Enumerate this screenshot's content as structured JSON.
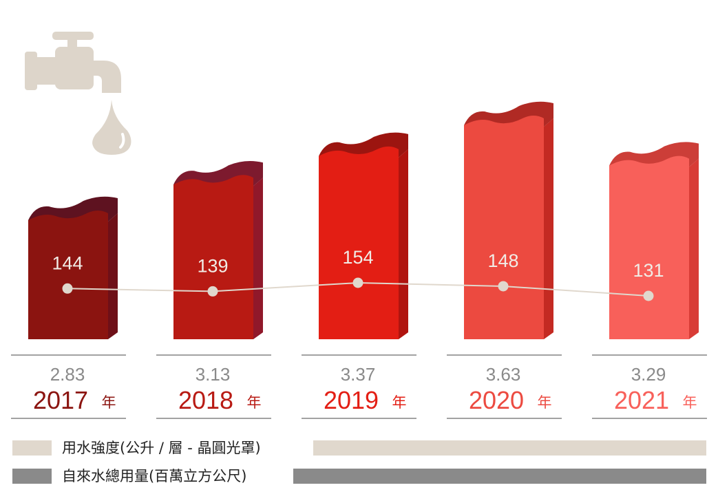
{
  "chart_data": {
    "type": "bar",
    "categories": [
      "2017",
      "2018",
      "2019",
      "2020",
      "2021"
    ],
    "year_suffix": "年",
    "series": [
      {
        "name": "自來水總用量(百萬立方公尺)",
        "values": [
          2.83,
          3.13,
          3.37,
          3.63,
          3.29
        ],
        "labels": [
          "2.83",
          "3.13",
          "3.37",
          "3.63",
          "3.29"
        ],
        "kind": "bar"
      },
      {
        "name": "用水強度(公升 / 層 - 晶圓光罩)",
        "values": [
          144,
          139,
          154,
          148,
          131
        ],
        "labels": [
          "144",
          "139",
          "154",
          "148",
          "131"
        ],
        "kind": "line"
      }
    ],
    "bar_colors": [
      "#8b1410",
      "#b81a13",
      "#e31e14",
      "#ec4a40",
      "#f8605a"
    ],
    "bar_side_colors": [
      "#6e1018",
      "#90182a",
      "#b0140f",
      "#c42a22",
      "#d83c36"
    ],
    "bar_top_colors": [
      "#5e1220",
      "#7d1a2e",
      "#9c1510",
      "#b02a24",
      "#cc3e38"
    ],
    "year_colors": [
      "#8b1410",
      "#b81a13",
      "#e31e14",
      "#ec4a40",
      "#f8605a"
    ],
    "value_text_color": "#8a8a8a",
    "line_color": "#e0d8cd",
    "legend_colors": {
      "intensity": "#e0d8cd",
      "total": "#8a8a8a"
    }
  },
  "legend": {
    "intensity_label": "用水強度(公升 / 層 - 晶圓光罩)",
    "total_label": "自來水總用量(百萬立方公尺)"
  },
  "icons": {
    "faucet": "faucet-icon",
    "droplet": "water-droplet-icon"
  }
}
